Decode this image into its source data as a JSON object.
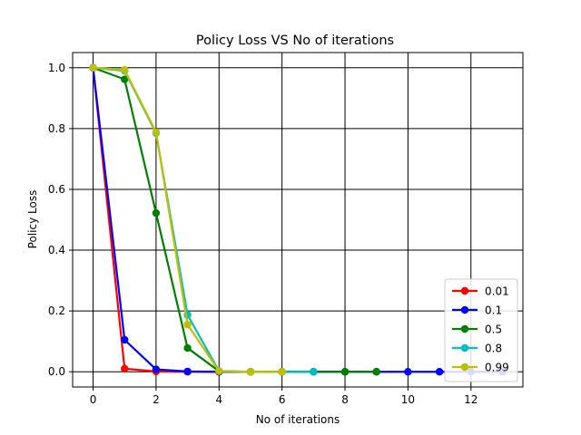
{
  "chart_data": {
    "type": "line",
    "title": "Policy Loss VS No of iterations",
    "xlabel": "No of iterations",
    "ylabel": "Policy Loss",
    "xlim": [
      -0.65,
      13.65
    ],
    "ylim": [
      -0.05,
      1.05
    ],
    "xticks": [
      0,
      2,
      4,
      6,
      8,
      10,
      12
    ],
    "yticks": [
      0.0,
      0.2,
      0.4,
      0.6,
      0.8,
      1.0
    ],
    "grid": true,
    "legend_position": "lower-right",
    "series": [
      {
        "name": "0.01",
        "color": "#ff0000",
        "x": [
          0,
          1,
          2,
          3,
          4
        ],
        "y": [
          1.0,
          0.01,
          0.001,
          0.0,
          0.0
        ]
      },
      {
        "name": "0.1",
        "color": "#0000ff",
        "x": [
          0,
          1,
          2,
          3,
          4,
          5,
          6,
          7,
          8,
          9,
          10,
          11,
          12,
          13
        ],
        "y": [
          1.0,
          0.105,
          0.008,
          0.001,
          0.0,
          0.0,
          0.0,
          0.0,
          0.0,
          0.0,
          0.0,
          0.0,
          0.0,
          0.0
        ]
      },
      {
        "name": "0.5",
        "color": "#008000",
        "x": [
          0,
          1,
          2,
          3,
          4,
          5,
          6,
          7,
          8,
          9
        ],
        "y": [
          1.0,
          0.962,
          0.522,
          0.078,
          0.002,
          0.0,
          0.0,
          0.0,
          0.0,
          0.0
        ]
      },
      {
        "name": "0.8",
        "color": "#00bfbf",
        "x": [
          0,
          1,
          2,
          3,
          4,
          5,
          6,
          7
        ],
        "y": [
          1.0,
          0.99,
          0.785,
          0.187,
          0.002,
          0.0,
          0.0,
          0.0
        ]
      },
      {
        "name": "0.99",
        "color": "#bfbf00",
        "x": [
          0,
          1,
          2,
          3,
          4,
          5,
          6
        ],
        "y": [
          1.0,
          0.993,
          0.788,
          0.155,
          0.002,
          0.0,
          0.0
        ]
      }
    ]
  }
}
